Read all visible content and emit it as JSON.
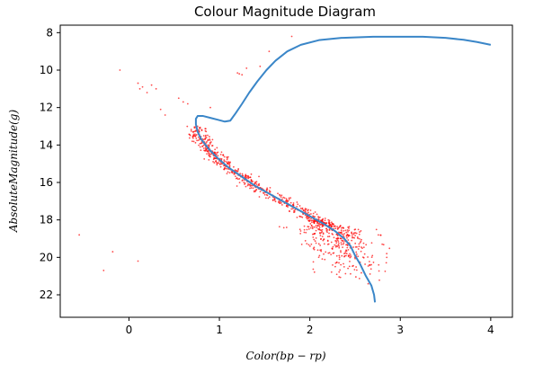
{
  "chart_data": {
    "type": "scatter",
    "title": "Colour Magnitude Diagram",
    "xlabel": "Color(bp − rp)",
    "ylabel": "AbsoluteMagnitude(g)",
    "xlim": [
      -0.76,
      4.24
    ],
    "ylim": [
      23.2,
      7.6
    ],
    "y_inverted": true,
    "grid": false,
    "xticks": [
      0,
      1,
      2,
      3,
      4
    ],
    "yticks": [
      8,
      10,
      12,
      14,
      16,
      18,
      20,
      22
    ],
    "scatter_color": "#ff0000",
    "line_color": "#3a86c8",
    "isochrone": {
      "x": [
        2.72,
        2.71,
        2.68,
        2.62,
        2.56,
        2.5,
        2.45,
        2.38,
        2.28,
        2.15,
        2.0,
        1.85,
        1.7,
        1.55,
        1.4,
        1.25,
        1.1,
        0.98,
        0.88,
        0.8,
        0.76,
        0.74,
        0.74,
        0.76,
        0.82,
        0.9,
        0.98,
        1.06,
        1.12,
        1.18,
        1.25,
        1.33,
        1.42,
        1.52,
        1.62,
        1.75,
        1.9,
        2.1,
        2.35,
        2.7,
        3.0,
        3.25,
        3.5,
        3.7,
        3.85,
        4.0
      ],
      "y": [
        22.4,
        22.0,
        21.5,
        21.0,
        20.4,
        19.9,
        19.4,
        19.0,
        18.6,
        18.2,
        17.8,
        17.4,
        17.0,
        16.6,
        16.2,
        15.7,
        15.2,
        14.7,
        14.2,
        13.7,
        13.3,
        12.9,
        12.6,
        12.45,
        12.45,
        12.55,
        12.65,
        12.75,
        12.7,
        12.3,
        11.8,
        11.2,
        10.6,
        10.0,
        9.5,
        9.0,
        8.65,
        8.4,
        8.28,
        8.22,
        8.22,
        8.22,
        8.28,
        8.38,
        8.5,
        8.65
      ]
    },
    "outliers": {
      "x": [
        -0.1,
        0.1,
        0.12,
        0.15,
        0.25,
        0.3,
        0.35,
        0.55,
        0.6,
        1.2,
        1.22,
        1.25,
        1.45,
        1.8,
        -0.55,
        -0.18,
        0.1,
        -0.28,
        0.2,
        0.4,
        0.65,
        1.3,
        1.55,
        0.9,
        2.8,
        2.85
      ],
      "y": [
        10.0,
        10.7,
        11.0,
        10.9,
        10.8,
        11.0,
        12.1,
        11.5,
        11.7,
        10.15,
        10.2,
        10.25,
        9.8,
        8.2,
        18.8,
        19.7,
        20.2,
        20.7,
        11.2,
        12.4,
        11.8,
        9.9,
        9.0,
        12.0,
        19.3,
        19.8
      ]
    },
    "point_count_estimate": 900
  }
}
